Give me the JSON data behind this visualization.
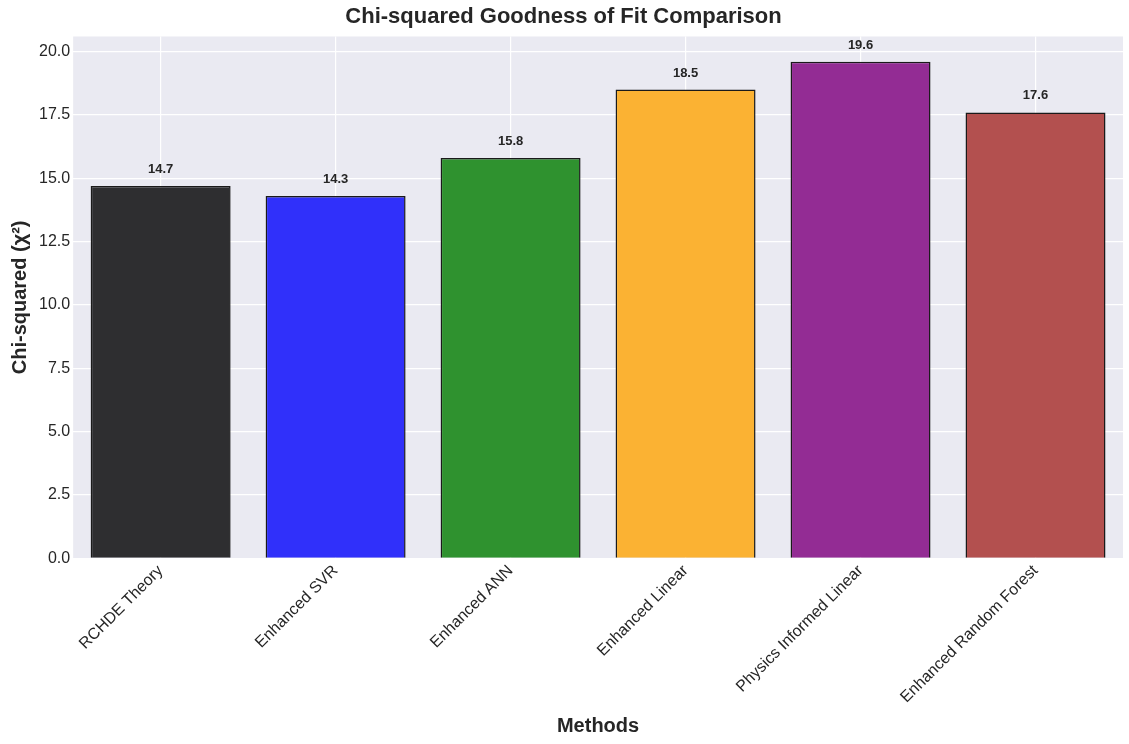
{
  "chart_data": {
    "type": "bar",
    "title": "Chi-squared Goodness of Fit Comparison",
    "xlabel": "Methods",
    "ylabel": "Chi-squared (χ²)",
    "categories": [
      "RCHDE Theory",
      "Enhanced SVR",
      "Enhanced ANN",
      "Enhanced Linear",
      "Physics Informed Linear",
      "Enhanced Random Forest"
    ],
    "values": [
      14.7,
      14.3,
      15.8,
      18.5,
      19.6,
      17.6
    ],
    "colors": [
      "#2e2e30",
      "#3030fa",
      "#2f922f",
      "#fbb233",
      "#932c94",
      "#b3504f"
    ],
    "ylim": [
      0,
      20.6
    ],
    "yticks": [
      {
        "value": 0,
        "label": "0.0"
      },
      {
        "value": 2.5,
        "label": "2.5"
      },
      {
        "value": 5,
        "label": "5.0"
      },
      {
        "value": 7.5,
        "label": "7.5"
      },
      {
        "value": 10,
        "label": "10.0"
      },
      {
        "value": 12.5,
        "label": "12.5"
      },
      {
        "value": 15,
        "label": "15.0"
      },
      {
        "value": 17.5,
        "label": "17.5"
      },
      {
        "value": 20,
        "label": "20.0"
      }
    ],
    "grid": true,
    "data_labels": true
  }
}
